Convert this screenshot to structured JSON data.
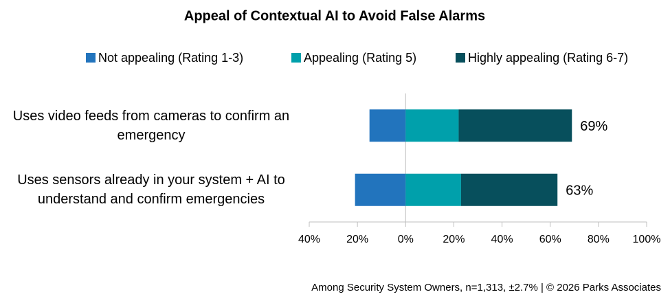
{
  "chart_data": {
    "type": "diverging_bar",
    "title": "Appeal of Contextual AI to Avoid False Alarms",
    "categories": [
      "Uses video feeds from cameras to confirm an emergency",
      "Uses sensors already in your system + AI to understand and confirm emergencies"
    ],
    "series": [
      {
        "name": "Not appealing (Rating 1-3)",
        "color": "#2274bd",
        "values": [
          -15,
          -21
        ]
      },
      {
        "name": "Appealing (Rating 5)",
        "color": "#00a0ab",
        "values": [
          22,
          23
        ]
      },
      {
        "name": "Highly appealing (Rating 6-7)",
        "color": "#074f5c",
        "values": [
          47,
          40
        ]
      }
    ],
    "totals": [
      69,
      63
    ],
    "total_labels": [
      "69%",
      "63%"
    ],
    "xlim": [
      -40,
      100
    ],
    "xticks": [
      {
        "value": -40,
        "label": "40%"
      },
      {
        "value": -20,
        "label": "20%"
      },
      {
        "value": 0,
        "label": "0%"
      },
      {
        "value": 20,
        "label": "20%"
      },
      {
        "value": 40,
        "label": "40%"
      },
      {
        "value": 60,
        "label": "60%"
      },
      {
        "value": 80,
        "label": "80%"
      },
      {
        "value": 100,
        "label": "100%"
      }
    ],
    "legend": "top",
    "footnote": "Among Security System Owners, n=1,313, ±2.7% | © 2026 Parks Associates"
  }
}
